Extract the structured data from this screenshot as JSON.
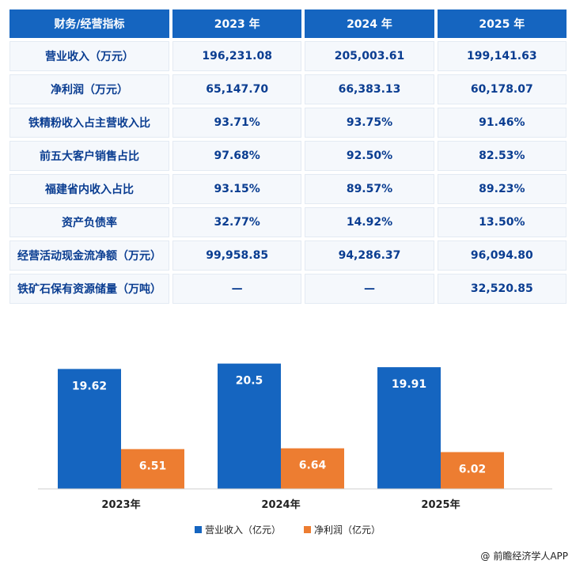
{
  "table": {
    "headers": [
      "财务/经营指标",
      "2023 年",
      "2024 年",
      "2025 年"
    ],
    "rows": [
      {
        "label": "营业收入（万元）",
        "values": [
          "196,231.08",
          "205,003.61",
          "199,141.63"
        ]
      },
      {
        "label": "净利润（万元）",
        "values": [
          "65,147.70",
          "66,383.13",
          "60,178.07"
        ]
      },
      {
        "label": "铁精粉收入占主营收入比",
        "values": [
          "93.71%",
          "93.75%",
          "91.46%"
        ]
      },
      {
        "label": "前五大客户销售占比",
        "values": [
          "97.68%",
          "92.50%",
          "82.53%"
        ]
      },
      {
        "label": "福建省内收入占比",
        "values": [
          "93.15%",
          "89.57%",
          "89.23%"
        ]
      },
      {
        "label": "资产负债率",
        "values": [
          "32.77%",
          "14.92%",
          "13.50%"
        ]
      },
      {
        "label": "经营活动现金流净额（万元）",
        "values": [
          "99,958.85",
          "94,286.37",
          "96,094.80"
        ]
      },
      {
        "label": "铁矿石保有资源储量（万吨）",
        "values": [
          "—",
          "—",
          "32,520.85"
        ]
      }
    ]
  },
  "chart_data": {
    "type": "bar",
    "categories": [
      "2023年",
      "2024年",
      "2025年"
    ],
    "series": [
      {
        "name": "营业收入（亿元）",
        "values": [
          19.62,
          20.5,
          19.91
        ],
        "labels": [
          "19.62",
          "20.5",
          "19.91"
        ],
        "color": "#1565c0"
      },
      {
        "name": "净利润（亿元）",
        "values": [
          6.51,
          6.64,
          6.02
        ],
        "labels": [
          "6.51",
          "6.64",
          "6.02"
        ],
        "color": "#ed7d31"
      }
    ],
    "ylim": [
      0,
      22
    ],
    "grid": false,
    "legend": "bottom-center"
  },
  "footer": {
    "text": "前瞻经济学人APP",
    "icon": "at-icon"
  }
}
